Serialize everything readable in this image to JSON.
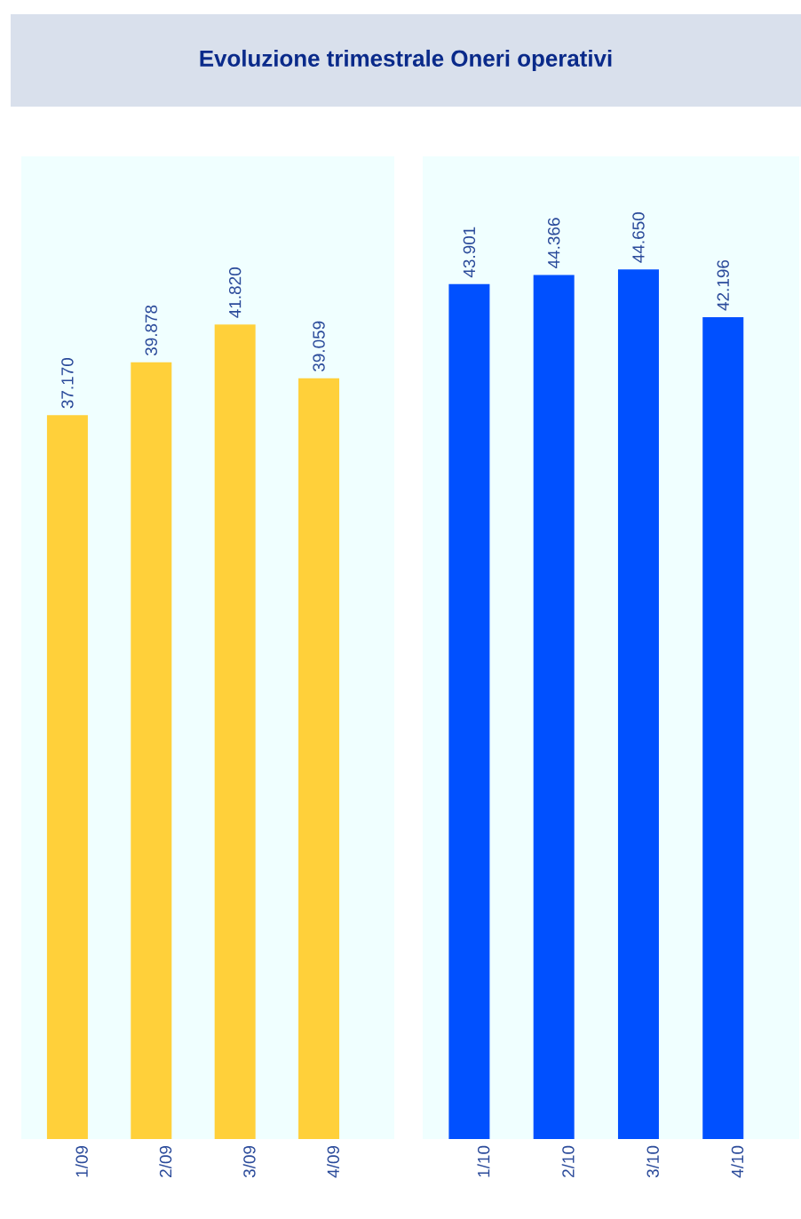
{
  "chart_data": [
    {
      "type": "bar",
      "title": "Evoluzione trimestrale Oneri operativi",
      "categories": [
        "1/09",
        "2/09",
        "3/09",
        "4/09"
      ],
      "values": [
        37170,
        39878,
        41820,
        39059
      ],
      "value_labels": [
        "37.170",
        "39.878",
        "41.820",
        "39.059"
      ],
      "color": "#ffd03a"
    },
    {
      "type": "bar",
      "categories": [
        "1/10",
        "2/10",
        "3/10",
        "4/10"
      ],
      "values": [
        43901,
        44366,
        44650,
        42196
      ],
      "value_labels": [
        "43.901",
        "44.366",
        "44.650",
        "42.196"
      ],
      "color": "#0050ff"
    }
  ]
}
